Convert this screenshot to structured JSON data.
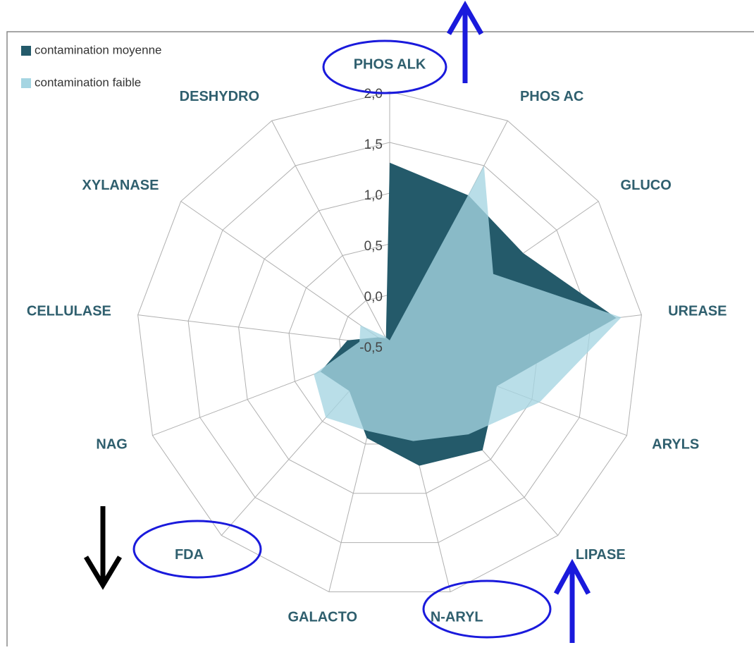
{
  "chart_data": {
    "type": "radar",
    "categories": [
      "PHOS ALK",
      "PHOS AC",
      "GLUCO",
      "UREASE",
      "ARYLS",
      "LIPASE",
      "N-ARYL",
      "GALACTO",
      "FDA",
      "NAG",
      "CELLULASE",
      "XYLANASE",
      "DESHYDRO"
    ],
    "series": [
      {
        "name": "contamination moyenne",
        "color": "#245a6a",
        "values": [
          1.3,
          1.17,
          1.1,
          1.75,
          0.63,
          0.88,
          0.72,
          0.44,
          0.1,
          0.23,
          -0.08,
          -0.36,
          -0.42
        ]
      },
      {
        "name": "contamination faible",
        "color": "#a5d5e2",
        "values": [
          -0.45,
          1.5,
          0.74,
          1.8,
          1.08,
          0.67,
          0.47,
          0.37,
          0.45,
          0.3,
          -0.2,
          -0.15,
          -0.4
        ]
      }
    ],
    "ylim": [
      -0.5,
      2.0
    ],
    "yticks": [
      {
        "value": -0.5,
        "label": "-0,5"
      },
      {
        "value": 0,
        "label": "0,0"
      },
      {
        "value": 0.5,
        "label": "0,5"
      },
      {
        "value": 1,
        "label": "1,0"
      },
      {
        "value": 1.5,
        "label": "1,5"
      },
      {
        "value": 2,
        "label": "2,0"
      }
    ],
    "grid": true,
    "legend": "top-left"
  }
}
